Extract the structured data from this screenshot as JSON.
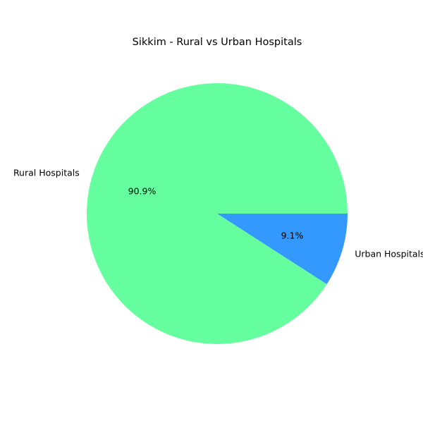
{
  "chart_data": {
    "type": "pie",
    "title": "Sikkim - Rural vs Urban Hospitals",
    "slices": [
      {
        "label": "Rural Hospitals",
        "value": 90.9,
        "pct_label": "90.9%",
        "color": "#66ff9f"
      },
      {
        "label": "Urban Hospitals",
        "value": 9.1,
        "pct_label": "9.1%",
        "color": "#3399ff"
      }
    ],
    "start_angle_deg": 0,
    "direction": "counterclockwise"
  }
}
